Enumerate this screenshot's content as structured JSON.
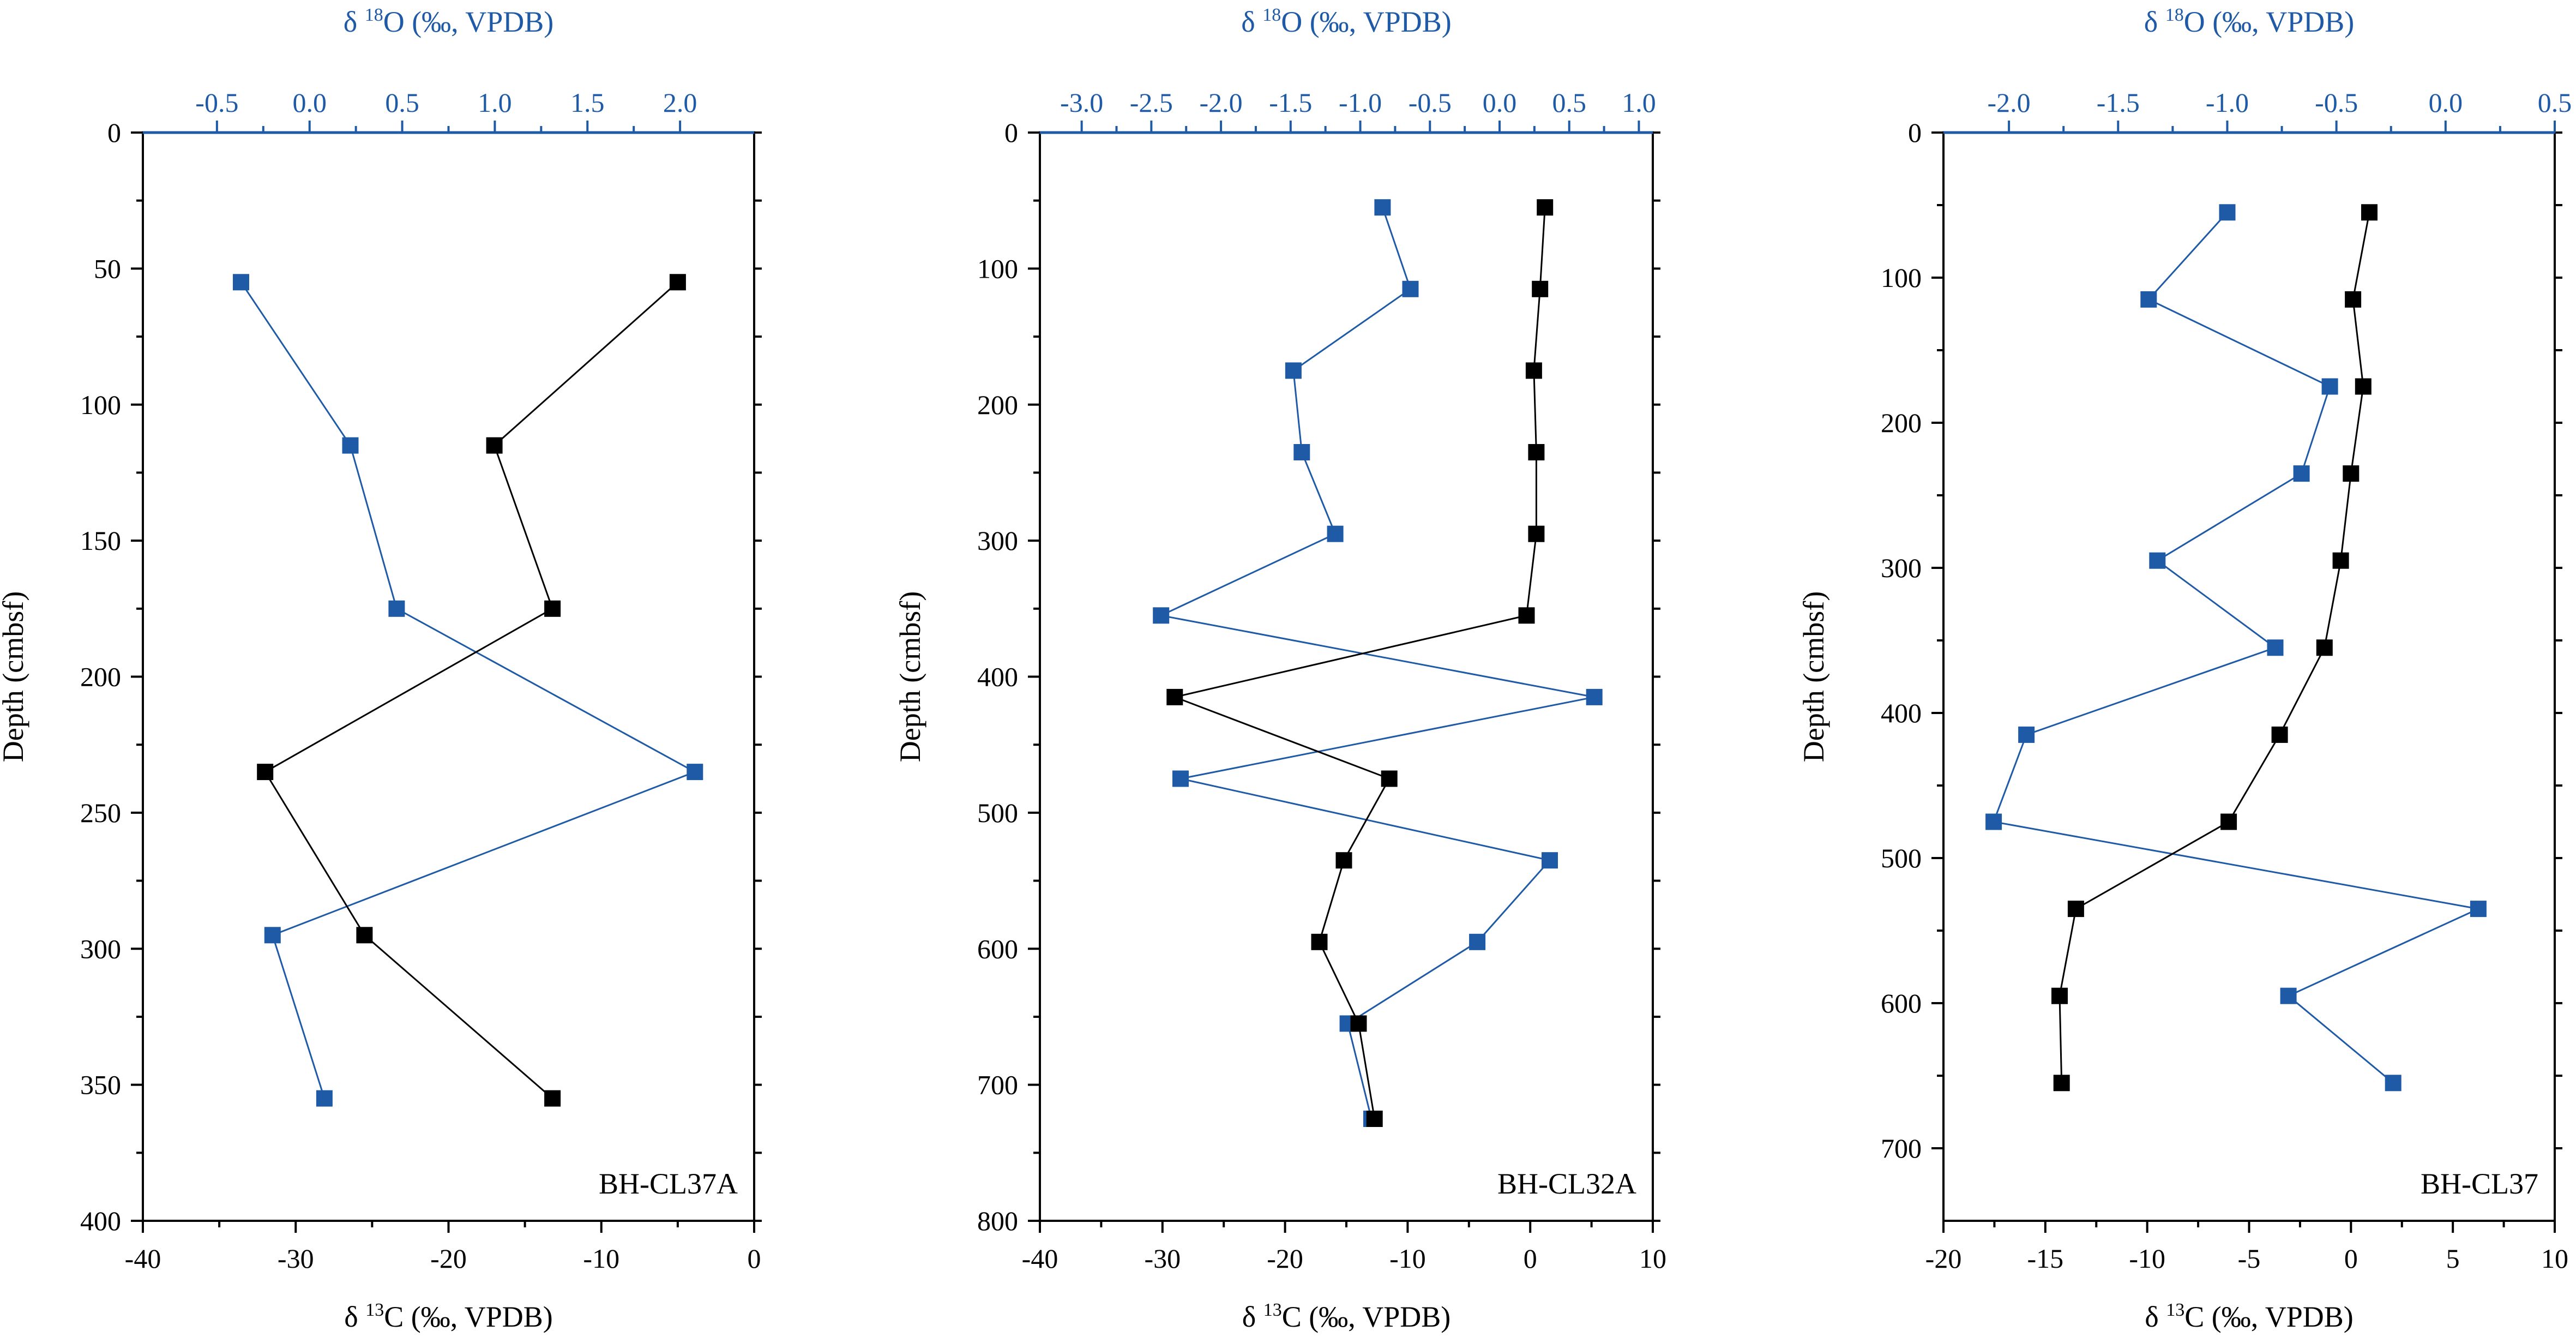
{
  "colors": {
    "c13": "#000000",
    "o18": "#1f5aa6",
    "axis": "#000000",
    "top_axis": "#1f5aa6"
  },
  "chart_data": [
    {
      "type": "line",
      "label": "BH-CL37A",
      "ylabel": "Depth (cmbsf)",
      "xlabel_bottom": "δ 13C (‰, VPDB)",
      "xlabel_top": "δ 18O (‰, VPDB)",
      "ylim": [
        400,
        0
      ],
      "yticks": [
        0,
        50,
        100,
        150,
        200,
        250,
        300,
        350,
        400
      ],
      "bottom_lim": [
        -40,
        0
      ],
      "bottom_ticks": [
        -40,
        -30,
        -20,
        -10,
        0
      ],
      "top_lim": [
        -0.9,
        2.4
      ],
      "top_ticks": [
        -0.5,
        0.0,
        0.5,
        1.0,
        1.5,
        2.0
      ],
      "series": [
        {
          "name": "δ13C",
          "axis": "bottom",
          "color_key": "c13",
          "depth": [
            55,
            115,
            175,
            235,
            295,
            355
          ],
          "values": [
            -5,
            -17,
            -13.2,
            -32,
            -25.5,
            -13.2
          ]
        },
        {
          "name": "δ18O",
          "axis": "top",
          "color_key": "o18",
          "depth": [
            55,
            115,
            175,
            235,
            295,
            355
          ],
          "values": [
            -0.37,
            0.22,
            0.47,
            2.08,
            -0.2,
            0.08
          ]
        }
      ]
    },
    {
      "type": "line",
      "label": "BH-CL32A",
      "ylabel": "Depth (cmbsf)",
      "xlabel_bottom": "δ 13C (‰, VPDB)",
      "xlabel_top": "δ 18O (‰, VPDB)",
      "ylim": [
        800,
        0
      ],
      "yticks": [
        0,
        100,
        200,
        300,
        400,
        500,
        600,
        700,
        800
      ],
      "bottom_lim": [
        -40,
        10
      ],
      "bottom_ticks": [
        -40,
        -30,
        -20,
        -10,
        0,
        10
      ],
      "top_lim": [
        -3.3,
        1.1
      ],
      "top_ticks": [
        -3.0,
        -2.5,
        -2.0,
        -1.5,
        -1.0,
        -0.5,
        0.0,
        0.5,
        1.0
      ],
      "series": [
        {
          "name": "δ13C",
          "axis": "bottom",
          "color_key": "c13",
          "depth": [
            55,
            115,
            175,
            235,
            295,
            355,
            415,
            475,
            535,
            595,
            655,
            725
          ],
          "values": [
            1.2,
            0.8,
            0.3,
            0.5,
            0.5,
            -0.3,
            -29,
            -11.5,
            -15.2,
            -17.2,
            -14,
            -12.7
          ]
        },
        {
          "name": "δ18O",
          "axis": "top",
          "color_key": "o18",
          "depth": [
            55,
            115,
            175,
            235,
            295,
            355,
            415,
            475,
            535,
            595,
            655,
            725
          ],
          "values": [
            -0.84,
            -0.64,
            -1.48,
            -1.42,
            -1.18,
            -2.43,
            0.68,
            -2.29,
            0.36,
            -0.16,
            -1.09,
            -0.92
          ]
        }
      ]
    },
    {
      "type": "line",
      "label": "BH-CL37",
      "ylabel": "Depth (cmbsf)",
      "xlabel_bottom": "δ 13C (‰, VPDB)",
      "xlabel_top": "δ 18O (‰, VPDB)",
      "ylim": [
        750,
        0
      ],
      "yticks": [
        0,
        100,
        200,
        300,
        400,
        500,
        600,
        700
      ],
      "bottom_lim": [
        -20,
        10
      ],
      "bottom_ticks": [
        -20,
        -15,
        -10,
        -5,
        0,
        5,
        10
      ],
      "top_lim": [
        -2.3,
        0.5
      ],
      "top_ticks": [
        -2.0,
        -1.5,
        -1.0,
        -0.5,
        0.0,
        0.5
      ],
      "series": [
        {
          "name": "δ13C",
          "axis": "bottom",
          "color_key": "c13",
          "depth": [
            55,
            115,
            175,
            235,
            295,
            355,
            415,
            475,
            535,
            595,
            655
          ],
          "values": [
            0.9,
            0.1,
            0.6,
            0.0,
            -0.5,
            -1.3,
            -3.5,
            -6.0,
            -13.5,
            -14.3,
            -14.2
          ]
        },
        {
          "name": "δ18O",
          "axis": "top",
          "color_key": "o18",
          "depth": [
            55,
            115,
            175,
            235,
            295,
            355,
            415,
            475,
            535,
            595,
            655
          ],
          "values": [
            -1.0,
            -1.36,
            -0.53,
            -0.66,
            -1.32,
            -0.78,
            -1.92,
            -2.07,
            0.15,
            -0.72,
            -0.24
          ]
        }
      ]
    }
  ]
}
